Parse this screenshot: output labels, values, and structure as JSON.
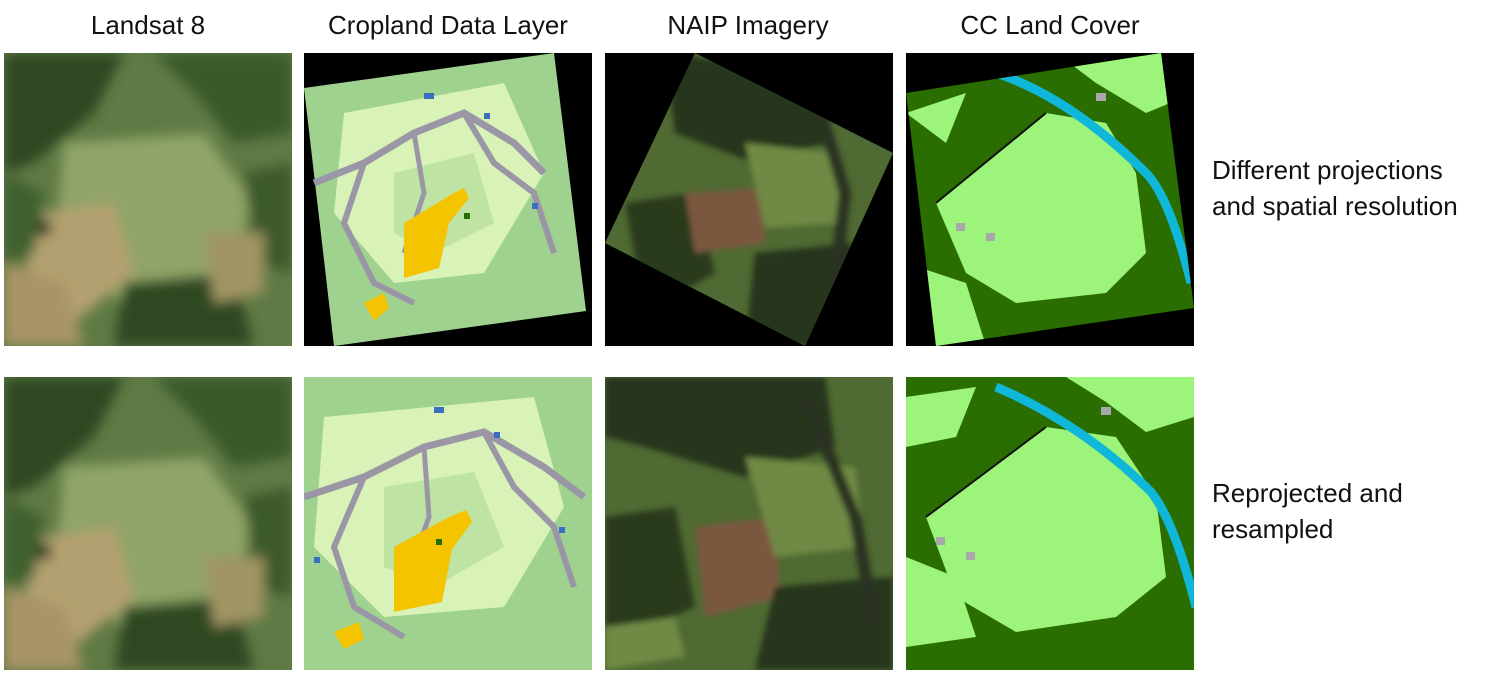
{
  "columns": [
    {
      "title": "Landsat 8"
    },
    {
      "title": "Cropland Data Layer"
    },
    {
      "title": "NAIP Imagery"
    },
    {
      "title": "CC Land Cover"
    }
  ],
  "rows": [
    {
      "lines": [
        "Different projections",
        "and spatial resolution"
      ]
    },
    {
      "lines": [
        "Reprojected and",
        "resampled"
      ]
    }
  ],
  "colors": {
    "background": "#000000",
    "landsat_base": "#5f7a45",
    "landsat_forest": "#2f4a24",
    "landsat_field": "#9aa86e",
    "landsat_tan": "#b3a070",
    "cdl_grass": "#9fd18f",
    "cdl_light": "#d9f2b8",
    "cdl_road": "#9a96a6",
    "cdl_crop": "#f5c400",
    "cdl_water": "#3a6fc0",
    "naip_forest": "#28361c",
    "naip_field": "#6f8a44",
    "naip_plowed": "#7a5840",
    "cc_forest": "#2a6e02",
    "cc_field": "#9cf57a",
    "cc_water": "#10b7d8",
    "cc_gray": "#a8a8a8"
  }
}
